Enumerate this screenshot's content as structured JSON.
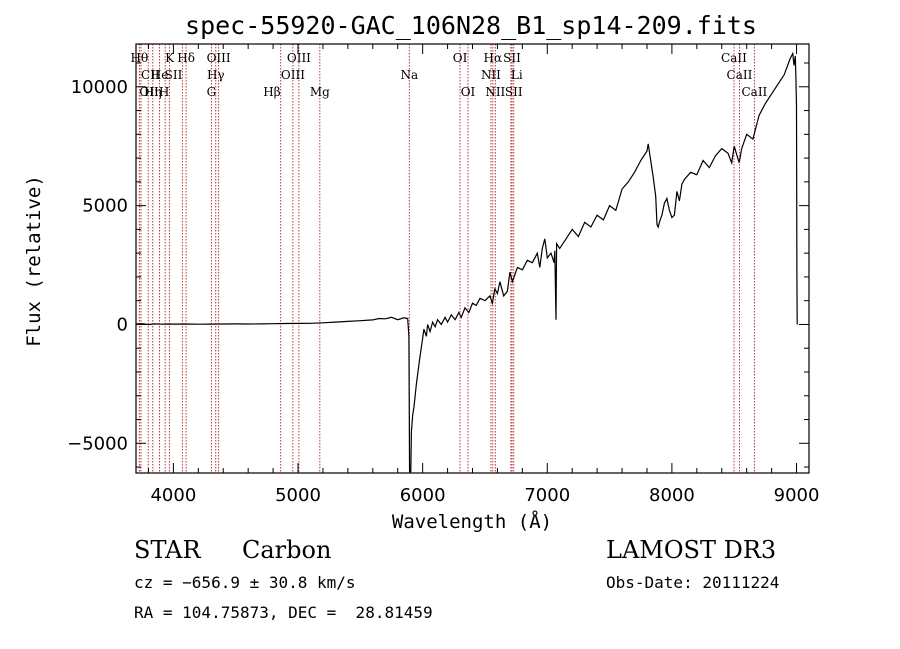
{
  "chart_data": {
    "type": "line",
    "title": "spec-55920-GAC_106N28_B1_sp14-209.fits",
    "xlabel": "Wavelength (Å)",
    "ylabel": "Flux (relative)",
    "xlim": [
      3700,
      9100
    ],
    "ylim": [
      -6250,
      11800
    ],
    "x_ticks": [
      4000,
      5000,
      6000,
      7000,
      8000,
      9000
    ],
    "x_tick_labels": [
      "4000",
      "5000",
      "6000",
      "7000",
      "8000",
      "9000"
    ],
    "y_ticks": [
      -5000,
      0,
      5000,
      10000
    ],
    "y_tick_labels": [
      "−5000",
      "0",
      "5000",
      "10000"
    ],
    "series": [
      {
        "name": "spectrum",
        "color": "#000000",
        "points": [
          [
            3700,
            20
          ],
          [
            3750,
            30
          ],
          [
            3800,
            0
          ],
          [
            3850,
            25
          ],
          [
            3900,
            10
          ],
          [
            3950,
            20
          ],
          [
            4000,
            15
          ],
          [
            4100,
            20
          ],
          [
            4200,
            10
          ],
          [
            4300,
            15
          ],
          [
            4400,
            20
          ],
          [
            4500,
            25
          ],
          [
            4600,
            20
          ],
          [
            4700,
            25
          ],
          [
            4800,
            30
          ],
          [
            4900,
            40
          ],
          [
            5000,
            45
          ],
          [
            5100,
            50
          ],
          [
            5200,
            70
          ],
          [
            5300,
            100
          ],
          [
            5400,
            130
          ],
          [
            5500,
            160
          ],
          [
            5600,
            190
          ],
          [
            5650,
            250
          ],
          [
            5700,
            240
          ],
          [
            5750,
            300
          ],
          [
            5800,
            200
          ],
          [
            5850,
            280
          ],
          [
            5880,
            250
          ],
          [
            5890,
            -500
          ],
          [
            5895,
            -6200
          ],
          [
            5905,
            -6200
          ],
          [
            5910,
            -4500
          ],
          [
            5920,
            -3800
          ],
          [
            5930,
            -3500
          ],
          [
            5950,
            -2500
          ],
          [
            5975,
            -1500
          ],
          [
            6000,
            -600
          ],
          [
            6010,
            -200
          ],
          [
            6030,
            -500
          ],
          [
            6040,
            0
          ],
          [
            6060,
            -300
          ],
          [
            6080,
            100
          ],
          [
            6100,
            -100
          ],
          [
            6120,
            200
          ],
          [
            6150,
            0
          ],
          [
            6180,
            300
          ],
          [
            6200,
            100
          ],
          [
            6230,
            400
          ],
          [
            6260,
            200
          ],
          [
            6290,
            500
          ],
          [
            6310,
            300
          ],
          [
            6340,
            700
          ],
          [
            6370,
            500
          ],
          [
            6400,
            900
          ],
          [
            6430,
            800
          ],
          [
            6460,
            1100
          ],
          [
            6500,
            1000
          ],
          [
            6540,
            1200
          ],
          [
            6560,
            900
          ],
          [
            6580,
            1500
          ],
          [
            6600,
            1300
          ],
          [
            6620,
            1800
          ],
          [
            6650,
            1200
          ],
          [
            6680,
            1400
          ],
          [
            6700,
            2200
          ],
          [
            6720,
            1800
          ],
          [
            6760,
            2400
          ],
          [
            6800,
            2300
          ],
          [
            6840,
            2700
          ],
          [
            6880,
            2600
          ],
          [
            6920,
            3000
          ],
          [
            6940,
            2400
          ],
          [
            6960,
            3200
          ],
          [
            6980,
            3600
          ],
          [
            7000,
            2800
          ],
          [
            7030,
            3000
          ],
          [
            7055,
            2600
          ],
          [
            7060,
            3100
          ],
          [
            7070,
            200
          ],
          [
            7075,
            3400
          ],
          [
            7100,
            3200
          ],
          [
            7150,
            3600
          ],
          [
            7200,
            4000
          ],
          [
            7250,
            3700
          ],
          [
            7300,
            4300
          ],
          [
            7350,
            4100
          ],
          [
            7400,
            4600
          ],
          [
            7450,
            4400
          ],
          [
            7500,
            5000
          ],
          [
            7550,
            4800
          ],
          [
            7600,
            5700
          ],
          [
            7650,
            6000
          ],
          [
            7700,
            6400
          ],
          [
            7750,
            6900
          ],
          [
            7800,
            7300
          ],
          [
            7810,
            7600
          ],
          [
            7830,
            6900
          ],
          [
            7850,
            6200
          ],
          [
            7870,
            5400
          ],
          [
            7880,
            4200
          ],
          [
            7890,
            4100
          ],
          [
            7900,
            4300
          ],
          [
            7920,
            4600
          ],
          [
            7940,
            5100
          ],
          [
            7960,
            5300
          ],
          [
            7980,
            4800
          ],
          [
            8000,
            4500
          ],
          [
            8020,
            4600
          ],
          [
            8040,
            5600
          ],
          [
            8060,
            5200
          ],
          [
            8080,
            5900
          ],
          [
            8100,
            6100
          ],
          [
            8150,
            6400
          ],
          [
            8200,
            6300
          ],
          [
            8250,
            6900
          ],
          [
            8300,
            6600
          ],
          [
            8350,
            7100
          ],
          [
            8400,
            7400
          ],
          [
            8450,
            7200
          ],
          [
            8480,
            6800
          ],
          [
            8500,
            7500
          ],
          [
            8540,
            6800
          ],
          [
            8560,
            7400
          ],
          [
            8600,
            8000
          ],
          [
            8650,
            7800
          ],
          [
            8700,
            8800
          ],
          [
            8750,
            9300
          ],
          [
            8800,
            9700
          ],
          [
            8850,
            10100
          ],
          [
            8900,
            10500
          ],
          [
            8950,
            11200
          ],
          [
            8970,
            11400
          ],
          [
            8980,
            10900
          ],
          [
            8990,
            11300
          ],
          [
            8995,
            10400
          ],
          [
            9000,
            9200
          ],
          [
            9003,
            2000
          ],
          [
            9005,
            0
          ]
        ]
      }
    ],
    "lines": [
      {
        "label": "Hθ",
        "x": 3798,
        "row": 1,
        "align": "end"
      },
      {
        "label": "K",
        "x": 3934,
        "row": 1,
        "align": "start"
      },
      {
        "label": "Hδ",
        "x": 4102,
        "row": 1,
        "align": "middle"
      },
      {
        "label": "OIII",
        "x": 4363,
        "row": 1,
        "align": "middle"
      },
      {
        "label": "OIII",
        "x": 5007,
        "row": 1,
        "align": "middle"
      },
      {
        "label": "OI",
        "x": 6300,
        "row": 1,
        "align": "middle"
      },
      {
        "label": "Hα",
        "x": 6563,
        "row": 1,
        "align": "middle"
      },
      {
        "label": "SII",
        "x": 6717,
        "row": 1,
        "align": "middle"
      },
      {
        "label": "CaII",
        "x": 8498,
        "row": 1,
        "align": "middle"
      },
      {
        "label": "CII",
        "x": 3740,
        "row": 2,
        "align": "start"
      },
      {
        "label": "He",
        "x": 3889,
        "row": 2,
        "align": "middle"
      },
      {
        "label": "SII",
        "x": 4072,
        "row": 2,
        "align": "end"
      },
      {
        "label": "Hγ",
        "x": 4340,
        "row": 2,
        "align": "middle"
      },
      {
        "label": "OIII",
        "x": 4959,
        "row": 2,
        "align": "middle"
      },
      {
        "label": "Na",
        "x": 5893,
        "row": 2,
        "align": "middle"
      },
      {
        "label": "NII",
        "x": 6548,
        "row": 2,
        "align": "middle"
      },
      {
        "label": "Li",
        "x": 6708,
        "row": 2,
        "align": "start"
      },
      {
        "label": "CaII",
        "x": 8542,
        "row": 2,
        "align": "middle"
      },
      {
        "label": "OII",
        "x": 3727,
        "row": 3,
        "align": "start"
      },
      {
        "label": "Hη",
        "x": 3835,
        "row": 3,
        "align": "middle"
      },
      {
        "label": "H",
        "x": 3968,
        "row": 3,
        "align": "end"
      },
      {
        "label": "G",
        "x": 4305,
        "row": 3,
        "align": "middle"
      },
      {
        "label": "Hβ",
        "x": 4861,
        "row": 3,
        "align": "end"
      },
      {
        "label": "Mg",
        "x": 5175,
        "row": 3,
        "align": "middle"
      },
      {
        "label": "OI",
        "x": 6364,
        "row": 3,
        "align": "middle"
      },
      {
        "label": "NII",
        "x": 6583,
        "row": 3,
        "align": "middle"
      },
      {
        "label": "SII",
        "x": 6731,
        "row": 3,
        "align": "middle"
      },
      {
        "label": "CaII",
        "x": 8662,
        "row": 3,
        "align": "middle"
      }
    ],
    "line_color": "#b22222"
  },
  "info": {
    "object_class": "STAR",
    "subclass": "Carbon",
    "survey": "LAMOST DR3",
    "velocity": "cz = −656.9 ± 30.8 km/s",
    "obs_date": "Obs-Date: 20111224",
    "coords": "RA = 104.75873, DEC =  28.81459"
  }
}
